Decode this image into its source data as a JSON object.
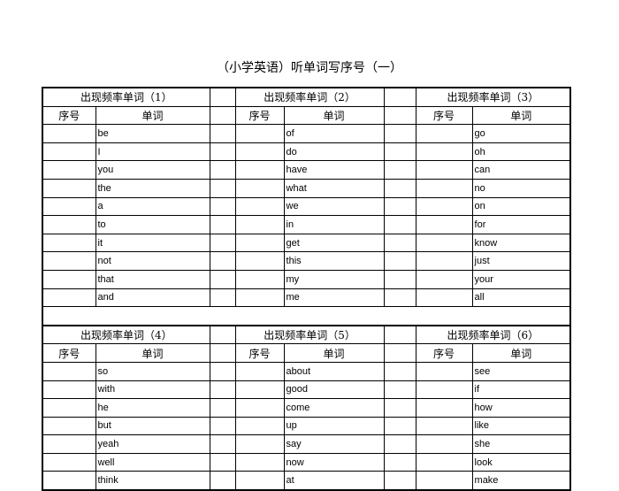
{
  "title": "（小学英语）听单词写序号（一）",
  "seq_label": "序号",
  "word_label": "单词",
  "blocks": [
    {
      "groups": [
        {
          "title": "出现频率单词（1）",
          "words": [
            "be",
            "I",
            "you",
            "the",
            "a",
            "to",
            "it",
            "not",
            "that",
            "and"
          ]
        },
        {
          "title": "出现频率单词（2）",
          "words": [
            "of",
            "do",
            "have",
            "what",
            "we",
            "in",
            "get",
            "this",
            "my",
            "me"
          ]
        },
        {
          "title": "出现频率单词（3）",
          "words": [
            "go",
            "oh",
            "can",
            "no",
            "on",
            "for",
            "know",
            "just",
            "your",
            "all"
          ]
        }
      ]
    },
    {
      "groups": [
        {
          "title": "出现频率单词（4）",
          "words": [
            "so",
            "with",
            "he",
            "but",
            "yeah",
            "well",
            "think"
          ]
        },
        {
          "title": "出现频率单词（5）",
          "words": [
            "about",
            "good",
            "come",
            "up",
            "say",
            "now",
            "at"
          ]
        },
        {
          "title": "出现频率单词（6）",
          "words": [
            "see",
            "if",
            "how",
            "like",
            "she",
            "look",
            "make"
          ]
        }
      ]
    }
  ]
}
